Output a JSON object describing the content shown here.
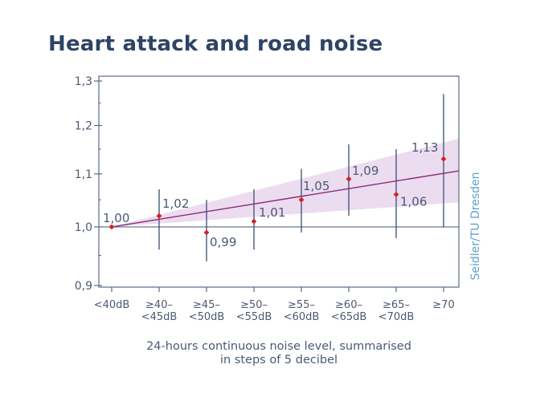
{
  "chart_data": {
    "type": "scatter",
    "title": "Heart attack and road noise",
    "categories": [
      [
        "<40dB"
      ],
      [
        "≥40–",
        "<45dB"
      ],
      [
        "≥45–",
        "<50dB"
      ],
      [
        "≥50–",
        "<55dB"
      ],
      [
        "≥55–",
        "<60dB"
      ],
      [
        "≥60–",
        "<65dB"
      ],
      [
        "≥65–",
        "<70dB"
      ],
      [
        "≥70"
      ]
    ],
    "values": [
      1.0,
      1.02,
      0.99,
      1.01,
      1.05,
      1.09,
      1.06,
      1.13
    ],
    "value_labels": [
      "1,00",
      "1,02",
      "0,99",
      "1,01",
      "1,05",
      "1,09",
      "1,06",
      "1,13"
    ],
    "ci_low": [
      1.0,
      0.96,
      0.94,
      0.96,
      0.99,
      1.02,
      0.98,
      1.0
    ],
    "ci_high": [
      1.0,
      1.07,
      1.05,
      1.07,
      1.11,
      1.16,
      1.15,
      1.27
    ],
    "trend": {
      "start": 1.0,
      "end": 1.106,
      "band_low_end": 1.045,
      "band_high_end": 1.172
    },
    "yticks": [
      0.9,
      1.0,
      1.1,
      1.2,
      1.3
    ],
    "ytick_labels": [
      "0,9",
      "1,0",
      "1,1",
      "1,2",
      "1,3"
    ],
    "ylim": [
      0.9,
      1.3
    ],
    "y_scale": "log",
    "reference_line": 1.0,
    "xlabel": [
      "24-hours continuous noise level, summarised",
      "in steps of 5 decibel"
    ],
    "ylabel": "",
    "source": "Seidler/TU Dresden",
    "grid": false,
    "colors": {
      "axis": "#5a6a85",
      "errorbar": "#3a4f73",
      "point": "#d42020",
      "trend": "#8a2a7a",
      "band": "#ecdcf0",
      "title": "#2e4464",
      "source": "#5fa0c8"
    }
  }
}
